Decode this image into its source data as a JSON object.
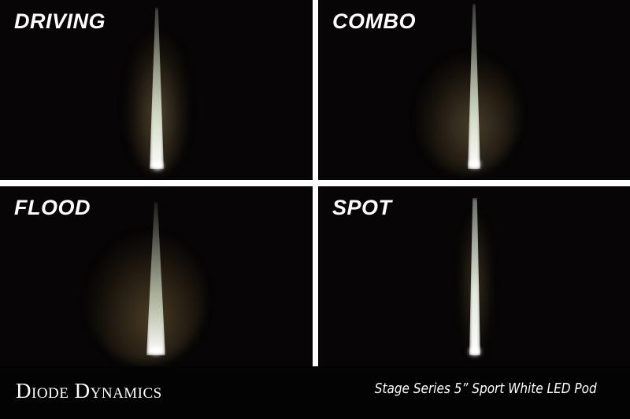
{
  "panels": [
    {
      "label": "DRIVING"
    },
    {
      "label": "COMBO"
    },
    {
      "label": "FLOOD"
    },
    {
      "label": "SPOT"
    }
  ],
  "footer": {
    "brand": "Diode Dynamics",
    "product": "Stage Series 5” Sport White LED Pod"
  },
  "colors": {
    "background": "#070505",
    "divider": "#ffffff",
    "text": "#ffffff"
  }
}
